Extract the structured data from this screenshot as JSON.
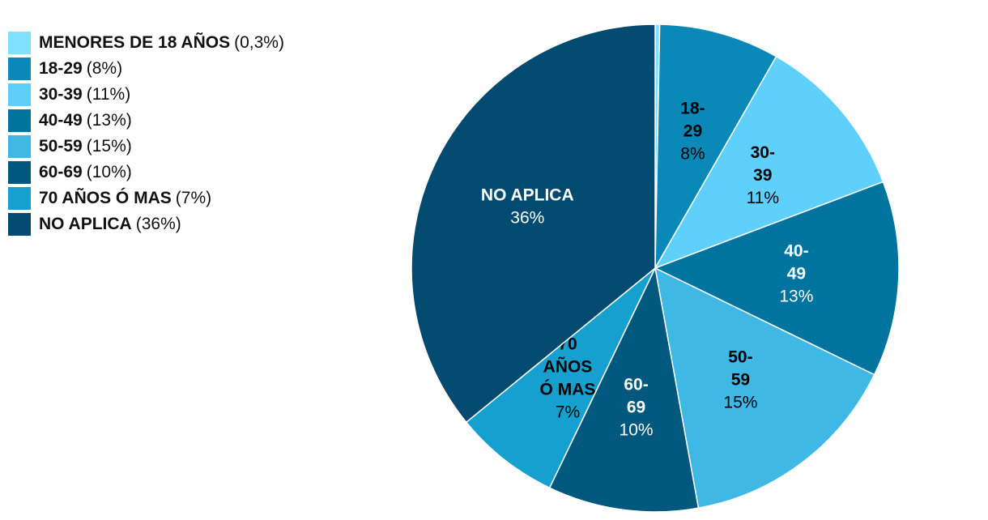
{
  "chart_data": {
    "type": "pie",
    "title": "",
    "slices": [
      {
        "label": "MENORES DE 18 AÑOS",
        "pct_text": "0,3%",
        "value": 0.3,
        "color": "#7fe1ff",
        "label_lines": [],
        "label_color": "#000000"
      },
      {
        "label": "18-29",
        "pct_text": "8%",
        "value": 8,
        "color": "#0a88b8",
        "label_lines": [
          "18-",
          "29"
        ],
        "label_color": "#000000"
      },
      {
        "label": "30-39",
        "pct_text": "11%",
        "value": 11,
        "color": "#5fd0fc",
        "label_lines": [
          "30-",
          "39"
        ],
        "label_color": "#000000"
      },
      {
        "label": "40-49",
        "pct_text": "13%",
        "value": 13,
        "color": "#00739f",
        "label_lines": [
          "40-",
          "49"
        ],
        "label_color": "#ffffff"
      },
      {
        "label": "50-59",
        "pct_text": "15%",
        "value": 15,
        "color": "#40b8e6",
        "label_lines": [
          "50-",
          "59"
        ],
        "label_color": "#000000"
      },
      {
        "label": "60-69",
        "pct_text": "10%",
        "value": 10,
        "color": "#01587f",
        "label_lines": [
          "60-",
          "69"
        ],
        "label_color": "#ffffff"
      },
      {
        "label": "70 AÑOS Ó MAS",
        "pct_text": "7%",
        "value": 7,
        "color": "#16a0d0",
        "label_lines": [
          "70",
          "AÑOS",
          "Ó MAS"
        ],
        "label_color": "#000000"
      },
      {
        "label": "NO APLICA",
        "pct_text": "36%",
        "value": 36,
        "color": "#024a70",
        "label_lines": [
          "NO APLICA"
        ],
        "label_color": "#ffffff"
      }
    ]
  }
}
